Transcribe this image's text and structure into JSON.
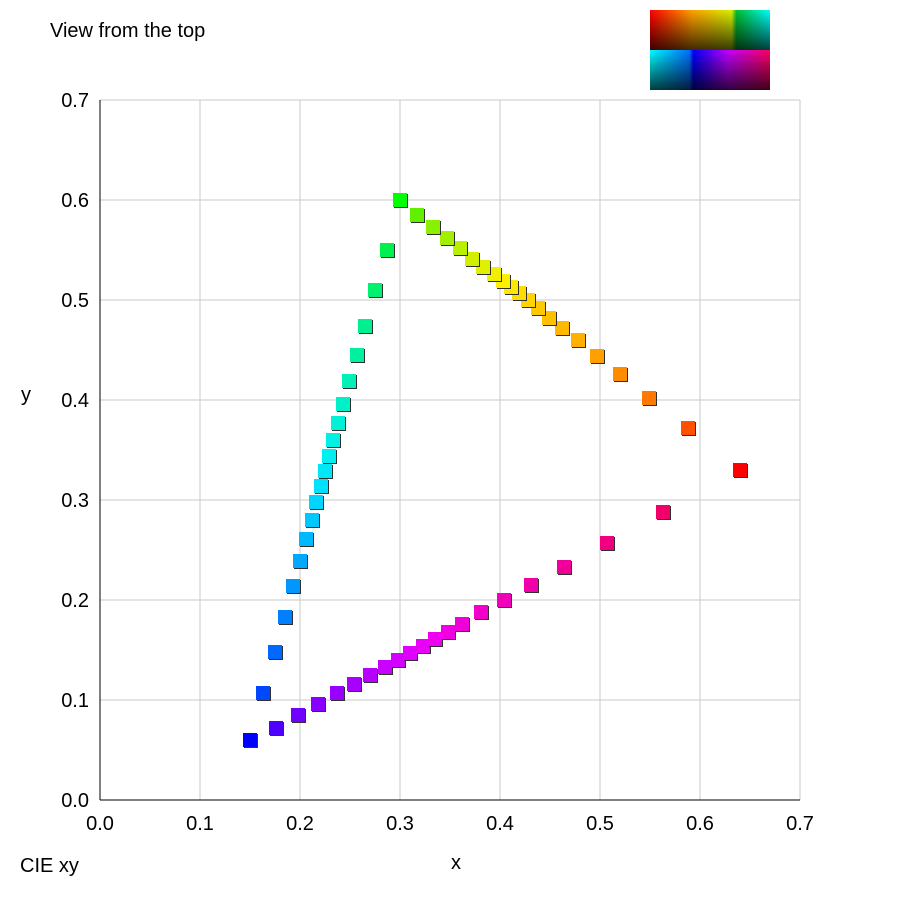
{
  "view_title": "View from the top",
  "footer_label": "CIE xy",
  "legend_swatch_icon": "rgb-color-cube-swatch-icon",
  "chart_data": {
    "type": "scatter",
    "title": "",
    "xlabel": "x",
    "ylabel": "y",
    "xlim": [
      0,
      0.7
    ],
    "ylim": [
      0,
      0.7
    ],
    "x_ticks": [
      "0.0",
      "0.1",
      "0.2",
      "0.3",
      "0.4",
      "0.5",
      "0.6",
      "0.7"
    ],
    "y_ticks": [
      "0.0",
      "0.1",
      "0.2",
      "0.3",
      "0.4",
      "0.5",
      "0.6",
      "0.7"
    ],
    "grid": true,
    "marker": "square",
    "points": [
      {
        "x": 0.64,
        "y": 0.33,
        "color": "#ff0000"
      },
      {
        "x": 0.588,
        "y": 0.372,
        "color": "#ff5000"
      },
      {
        "x": 0.549,
        "y": 0.402,
        "color": "#ff7800"
      },
      {
        "x": 0.52,
        "y": 0.426,
        "color": "#ff8c00"
      },
      {
        "x": 0.497,
        "y": 0.444,
        "color": "#ffa000"
      },
      {
        "x": 0.478,
        "y": 0.46,
        "color": "#ffb000"
      },
      {
        "x": 0.462,
        "y": 0.472,
        "color": "#ffb800"
      },
      {
        "x": 0.449,
        "y": 0.482,
        "color": "#ffc000"
      },
      {
        "x": 0.438,
        "y": 0.492,
        "color": "#ffc800"
      },
      {
        "x": 0.428,
        "y": 0.5,
        "color": "#ffd400"
      },
      {
        "x": 0.419,
        "y": 0.507,
        "color": "#ffdc00"
      },
      {
        "x": 0.411,
        "y": 0.513,
        "color": "#ffe800"
      },
      {
        "x": 0.403,
        "y": 0.519,
        "color": "#fff000"
      },
      {
        "x": 0.394,
        "y": 0.526,
        "color": "#f0f000"
      },
      {
        "x": 0.383,
        "y": 0.533,
        "color": "#e0f000"
      },
      {
        "x": 0.372,
        "y": 0.541,
        "color": "#d0f000"
      },
      {
        "x": 0.36,
        "y": 0.552,
        "color": "#b8f000"
      },
      {
        "x": 0.347,
        "y": 0.562,
        "color": "#a0f000"
      },
      {
        "x": 0.333,
        "y": 0.573,
        "color": "#88f000"
      },
      {
        "x": 0.317,
        "y": 0.585,
        "color": "#60f000"
      },
      {
        "x": 0.3,
        "y": 0.6,
        "color": "#00ff00"
      },
      {
        "x": 0.287,
        "y": 0.55,
        "color": "#00f050"
      },
      {
        "x": 0.275,
        "y": 0.51,
        "color": "#00f070"
      },
      {
        "x": 0.265,
        "y": 0.474,
        "color": "#00f090"
      },
      {
        "x": 0.257,
        "y": 0.445,
        "color": "#00f0a0"
      },
      {
        "x": 0.249,
        "y": 0.419,
        "color": "#00f0b8"
      },
      {
        "x": 0.243,
        "y": 0.396,
        "color": "#00f0c8"
      },
      {
        "x": 0.238,
        "y": 0.377,
        "color": "#00f0d8"
      },
      {
        "x": 0.233,
        "y": 0.36,
        "color": "#00f0e4"
      },
      {
        "x": 0.229,
        "y": 0.344,
        "color": "#00f0f0"
      },
      {
        "x": 0.225,
        "y": 0.329,
        "color": "#00e8f8"
      },
      {
        "x": 0.221,
        "y": 0.314,
        "color": "#00e0ff"
      },
      {
        "x": 0.216,
        "y": 0.298,
        "color": "#00d4ff"
      },
      {
        "x": 0.212,
        "y": 0.28,
        "color": "#00c8ff"
      },
      {
        "x": 0.206,
        "y": 0.261,
        "color": "#00b8ff"
      },
      {
        "x": 0.2,
        "y": 0.239,
        "color": "#00a8ff"
      },
      {
        "x": 0.193,
        "y": 0.214,
        "color": "#0098ff"
      },
      {
        "x": 0.185,
        "y": 0.183,
        "color": "#0080ff"
      },
      {
        "x": 0.175,
        "y": 0.148,
        "color": "#0068ff"
      },
      {
        "x": 0.163,
        "y": 0.107,
        "color": "#0048ff"
      },
      {
        "x": 0.15,
        "y": 0.06,
        "color": "#0000ff"
      },
      {
        "x": 0.176,
        "y": 0.072,
        "color": "#5000ff"
      },
      {
        "x": 0.198,
        "y": 0.085,
        "color": "#7000ff"
      },
      {
        "x": 0.218,
        "y": 0.096,
        "color": "#8800ff"
      },
      {
        "x": 0.237,
        "y": 0.107,
        "color": "#9800ff"
      },
      {
        "x": 0.254,
        "y": 0.116,
        "color": "#a800ff"
      },
      {
        "x": 0.27,
        "y": 0.125,
        "color": "#b800ff"
      },
      {
        "x": 0.285,
        "y": 0.133,
        "color": "#c800ff"
      },
      {
        "x": 0.298,
        "y": 0.14,
        "color": "#d400ff"
      },
      {
        "x": 0.31,
        "y": 0.147,
        "color": "#e000ff"
      },
      {
        "x": 0.323,
        "y": 0.154,
        "color": "#e800f8"
      },
      {
        "x": 0.335,
        "y": 0.161,
        "color": "#f000f0"
      },
      {
        "x": 0.348,
        "y": 0.168,
        "color": "#f000e0"
      },
      {
        "x": 0.362,
        "y": 0.176,
        "color": "#f000d8"
      },
      {
        "x": 0.381,
        "y": 0.188,
        "color": "#f000c8"
      },
      {
        "x": 0.404,
        "y": 0.2,
        "color": "#f000b8"
      },
      {
        "x": 0.431,
        "y": 0.215,
        "color": "#f000a8"
      },
      {
        "x": 0.464,
        "y": 0.233,
        "color": "#f00098"
      },
      {
        "x": 0.507,
        "y": 0.257,
        "color": "#f00080"
      },
      {
        "x": 0.563,
        "y": 0.288,
        "color": "#f00068"
      }
    ]
  }
}
